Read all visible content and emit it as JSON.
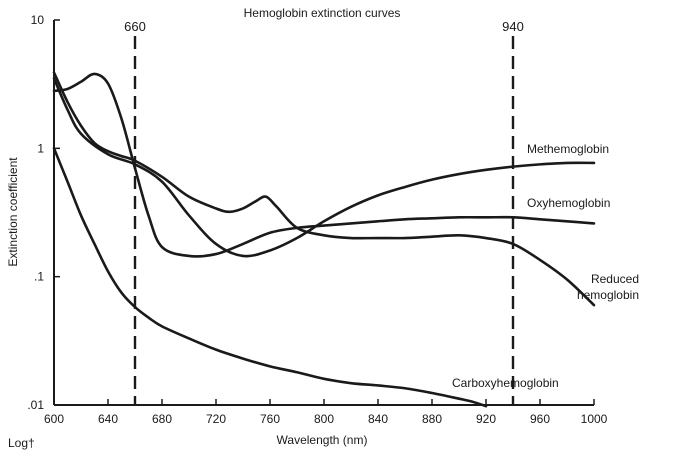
{
  "chart_data": {
    "type": "line",
    "title": "Hemoglobin extinction curves",
    "xlabel": "Wavelength (nm)",
    "ylabel": "Extinction coefficient",
    "y_scale": "log",
    "y_scale_note": "Log†",
    "xlim": [
      600,
      1000
    ],
    "ylim": [
      0.01,
      10
    ],
    "x_ticks": [
      600,
      640,
      680,
      720,
      760,
      800,
      840,
      880,
      920,
      960,
      1000
    ],
    "x_tick_labels": [
      "600",
      "640",
      "680",
      "720",
      "760",
      "800",
      "840",
      "880",
      "920",
      "960",
      "1000"
    ],
    "y_ticks": [
      0.01,
      0.1,
      1,
      10
    ],
    "y_tick_labels": [
      ".01",
      ".1",
      "1",
      "10"
    ],
    "grid": false,
    "vertical_markers": [
      {
        "x": 660,
        "label": "660",
        "style": "dashed"
      },
      {
        "x": 940,
        "label": "940",
        "style": "dashed"
      }
    ],
    "series": [
      {
        "name": "Methemoglobin",
        "label_lines": [
          "Methemoglobin"
        ],
        "x": [
          600,
          610,
          620,
          640,
          660,
          680,
          700,
          720,
          740,
          760,
          780,
          800,
          820,
          840,
          860,
          880,
          900,
          920,
          940,
          960,
          980,
          1000
        ],
        "y": [
          3.5,
          2.0,
          1.3,
          0.9,
          0.75,
          0.55,
          0.3,
          0.18,
          0.145,
          0.16,
          0.2,
          0.27,
          0.35,
          0.43,
          0.5,
          0.57,
          0.63,
          0.68,
          0.72,
          0.75,
          0.77,
          0.77
        ]
      },
      {
        "name": "Oxyhemoglobin",
        "label_lines": [
          "Oxyhemoglobin"
        ],
        "x": [
          600,
          610,
          620,
          630,
          640,
          650,
          660,
          670,
          680,
          700,
          720,
          740,
          760,
          780,
          800,
          820,
          840,
          860,
          880,
          900,
          920,
          940,
          960,
          980,
          1000
        ],
        "y": [
          2.8,
          2.9,
          3.3,
          3.8,
          3.2,
          1.7,
          0.7,
          0.3,
          0.17,
          0.145,
          0.15,
          0.18,
          0.22,
          0.24,
          0.25,
          0.26,
          0.27,
          0.28,
          0.285,
          0.29,
          0.29,
          0.29,
          0.28,
          0.27,
          0.26
        ]
      },
      {
        "name": "Reduced hemoglobin",
        "label_lines": [
          "Reduced",
          "hemoglobin"
        ],
        "x": [
          600,
          610,
          620,
          630,
          640,
          650,
          660,
          680,
          700,
          720,
          730,
          740,
          750,
          757,
          765,
          780,
          800,
          820,
          840,
          860,
          880,
          900,
          920,
          940,
          960,
          980,
          1000
        ],
        "y": [
          3.9,
          2.3,
          1.5,
          1.1,
          0.95,
          0.87,
          0.8,
          0.6,
          0.42,
          0.34,
          0.32,
          0.34,
          0.39,
          0.42,
          0.35,
          0.24,
          0.21,
          0.2,
          0.2,
          0.2,
          0.205,
          0.21,
          0.2,
          0.18,
          0.135,
          0.095,
          0.06
        ]
      },
      {
        "name": "Carboxyhemoglobin",
        "label_lines": [
          "Carboxyhemoglobin"
        ],
        "x": [
          600,
          610,
          620,
          630,
          640,
          650,
          660,
          670,
          680,
          700,
          720,
          740,
          760,
          780,
          800,
          820,
          840,
          860,
          880,
          900,
          910,
          920
        ],
        "y": [
          1.0,
          0.55,
          0.3,
          0.18,
          0.11,
          0.075,
          0.058,
          0.048,
          0.041,
          0.033,
          0.027,
          0.023,
          0.02,
          0.018,
          0.016,
          0.0148,
          0.0142,
          0.0135,
          0.0124,
          0.0112,
          0.0106,
          0.0098
        ]
      }
    ]
  }
}
